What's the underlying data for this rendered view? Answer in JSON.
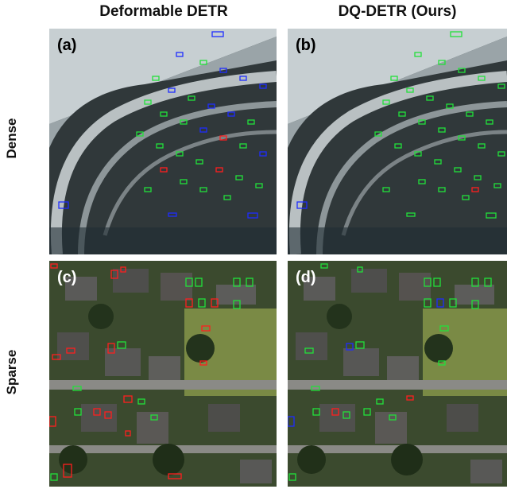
{
  "columns": {
    "left_title": "Deformable DETR",
    "right_title": "DQ-DETR (Ours)"
  },
  "rows": {
    "top_title": "Dense",
    "bottom_title": "Sparse"
  },
  "panels": {
    "a": "(a)",
    "b": "(b)",
    "c": "(c)",
    "d": "(d)"
  },
  "colors": {
    "true_positive": "#22e03a",
    "false_positive": "#ff1e1e",
    "missed": "#1e2cff"
  }
}
